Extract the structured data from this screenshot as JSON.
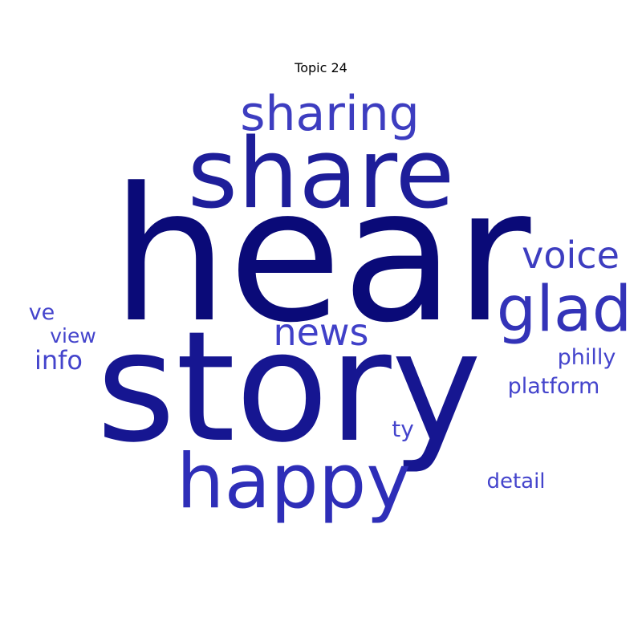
{
  "title": "Topic 24",
  "words": [
    {
      "text": "hear",
      "color": "#0a0a78"
    },
    {
      "text": "story",
      "color": "#161691"
    },
    {
      "text": "share",
      "color": "#1e1e9a"
    },
    {
      "text": "happy",
      "color": "#2e2eb8"
    },
    {
      "text": "glad",
      "color": "#3333b8"
    },
    {
      "text": "sharing",
      "color": "#3d3dc0"
    },
    {
      "text": "voice",
      "color": "#3d3dc0"
    },
    {
      "text": "news",
      "color": "#4040c8"
    },
    {
      "text": "info",
      "color": "#4444cc"
    },
    {
      "text": "philly",
      "color": "#4444cc"
    },
    {
      "text": "platform",
      "color": "#4444cc"
    },
    {
      "text": "ty",
      "color": "#4444cc"
    },
    {
      "text": "detail",
      "color": "#4444cc"
    },
    {
      "text": "ve",
      "color": "#4444cc"
    },
    {
      "text": "view",
      "color": "#4444cc"
    }
  ]
}
